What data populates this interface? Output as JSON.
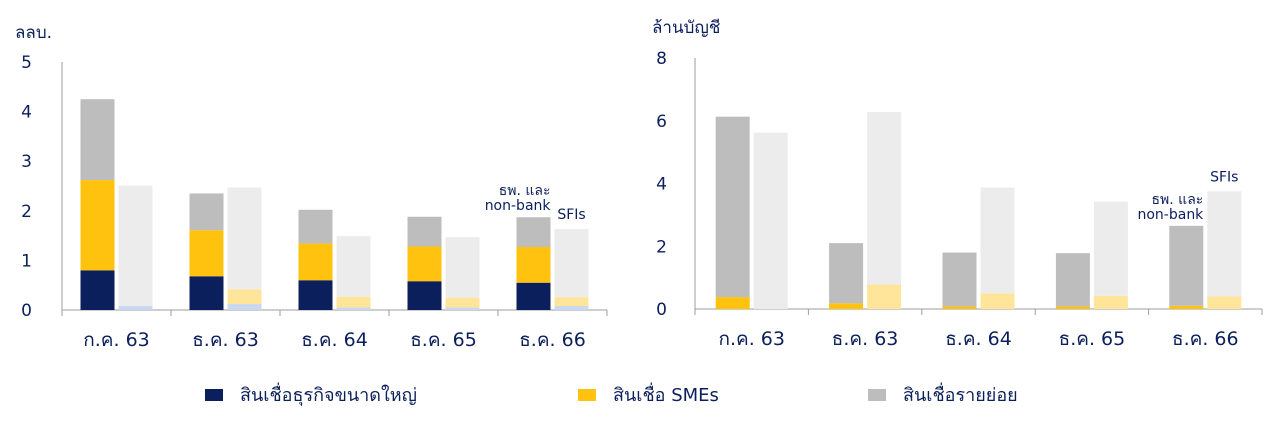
{
  "colors": {
    "large": "#0b1f5c",
    "sme": "#ffc20e",
    "retail": "#bdbdbd",
    "large_faded": "#c9d8f0",
    "sme_faded": "#ffe599",
    "retail_faded": "#ececec",
    "axis": "#9e9e9e",
    "text": "#0b1f5c"
  },
  "legend": {
    "large": "สินเชื่อธุรกิจขนาดใหญ่",
    "sme": "สินเชื่อ SMEs",
    "retail": "สินเชื่อรายย่อย"
  },
  "chart_data": [
    {
      "type": "bar",
      "stacked": true,
      "ylabel": "ลลบ.",
      "ylim": [
        0,
        5
      ],
      "yticks": [
        0,
        1,
        2,
        3,
        4,
        5
      ],
      "categories": [
        "ก.ค. 63",
        "ธ.ค. 63",
        "ธ.ค. 64",
        "ธ.ค. 65",
        "ธ.ค. 66"
      ],
      "bar_labels": {
        "bank": "ธพ. และ non-bank",
        "sfi": "SFIs"
      },
      "series": [
        {
          "name": "สินเชื่อธุรกิจขนาดใหญ่",
          "bank": [
            0.8,
            0.68,
            0.6,
            0.58,
            0.55
          ],
          "sfi": [
            0.08,
            0.12,
            0.05,
            0.05,
            0.08
          ]
        },
        {
          "name": "สินเชื่อ SMEs",
          "bank": [
            1.82,
            0.93,
            0.74,
            0.7,
            0.72
          ],
          "sfi": [
            0.0,
            0.3,
            0.22,
            0.2,
            0.18
          ]
        },
        {
          "name": "สินเชื่อรายย่อย",
          "bank": [
            1.63,
            0.74,
            0.68,
            0.6,
            0.6
          ],
          "sfi": [
            2.43,
            2.05,
            1.22,
            1.22,
            1.37
          ]
        }
      ]
    },
    {
      "type": "bar",
      "stacked": true,
      "ylabel": "ล้านบัญชี",
      "ylim": [
        0,
        8
      ],
      "yticks": [
        0,
        2,
        4,
        6,
        8
      ],
      "categories": [
        "ก.ค. 63",
        "ธ.ค. 63",
        "ธ.ค. 64",
        "ธ.ค. 65",
        "ธ.ค. 66"
      ],
      "bar_labels": {
        "bank": "ธพ. และ non-bank",
        "sfi": "SFIs"
      },
      "series": [
        {
          "name": "สินเชื่อธุรกิจขนาดใหญ่",
          "bank": [
            0.0,
            0.0,
            0.0,
            0.0,
            0.0
          ],
          "sfi": [
            0.0,
            0.0,
            0.0,
            0.0,
            0.0
          ]
        },
        {
          "name": "สินเชื่อ SMEs",
          "bank": [
            0.38,
            0.18,
            0.08,
            0.08,
            0.1
          ],
          "sfi": [
            0.0,
            0.78,
            0.5,
            0.42,
            0.4
          ]
        },
        {
          "name": "สินเชื่อรายย่อย",
          "bank": [
            5.75,
            1.92,
            1.72,
            1.7,
            2.55
          ],
          "sfi": [
            5.62,
            5.5,
            3.37,
            3.0,
            3.35
          ]
        }
      ]
    }
  ]
}
